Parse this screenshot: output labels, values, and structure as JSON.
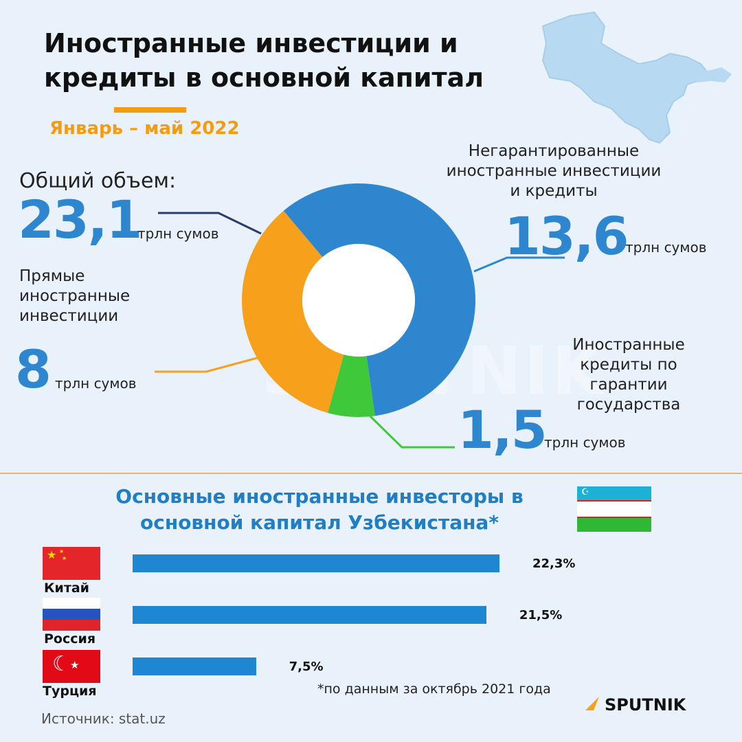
{
  "header": {
    "title_line1": "Иностранные инвестиции и",
    "title_line2": "кредиты в основной капитал",
    "period": "Январь – май 2022"
  },
  "total": {
    "label": "Общий объем:",
    "value": "23,1",
    "unit": "трлн сумов"
  },
  "segments_text": [
    {
      "label_lines": [
        "Негарантированные",
        "иностранные инвестиции",
        "и кредиты"
      ],
      "value": "13,6",
      "unit": "трлн сумов"
    },
    {
      "label_lines": [
        "Прямые",
        "иностранные",
        "инвестиции"
      ],
      "value": "8",
      "unit": "трлн сумов"
    },
    {
      "label_lines": [
        "Иностранные",
        "кредиты по",
        "гарантии",
        "государства"
      ],
      "value": "1,5",
      "unit": "трлн сумов"
    }
  ],
  "investors": {
    "title_line1": "Основные иностранные инвесторы в",
    "title_line2": "основной капитал Узбекистана*",
    "footnote": "*по данным за октябрь 2021 года"
  },
  "source": "Источник: stat.uz",
  "brand": "SPUTNIK",
  "watermark": "SPUTNIK",
  "colors": {
    "blue": "#2e86cf",
    "orange": "#f7a01c",
    "green": "#3ec83a",
    "bar": "#1f86d1",
    "accent": "#f39c12",
    "heading_blue": "#1f7fc6"
  },
  "chart_data": [
    {
      "type": "pie",
      "title": "Иностранные инвестиции и кредиты в основной капитал",
      "unit": "трлн сумов",
      "total": 23.1,
      "slices": [
        {
          "label": "Негарантированные иностранные инвестиции и кредиты",
          "value": 13.6,
          "color": "#2e86cf"
        },
        {
          "label": "Иностранные кредиты по гарантии государства",
          "value": 1.5,
          "color": "#3ec83a"
        },
        {
          "label": "Прямые иностранные инвестиции",
          "value": 8,
          "color": "#f7a01c"
        }
      ]
    },
    {
      "type": "bar",
      "orientation": "horizontal",
      "title": "Основные иностранные инвесторы в основной капитал Узбекистана*",
      "categories": [
        "Китай",
        "Россия",
        "Турция"
      ],
      "values": [
        22.3,
        21.5,
        7.5
      ],
      "value_labels": [
        "22,3%",
        "21,5%",
        "7,5%"
      ],
      "unit": "%"
    }
  ]
}
